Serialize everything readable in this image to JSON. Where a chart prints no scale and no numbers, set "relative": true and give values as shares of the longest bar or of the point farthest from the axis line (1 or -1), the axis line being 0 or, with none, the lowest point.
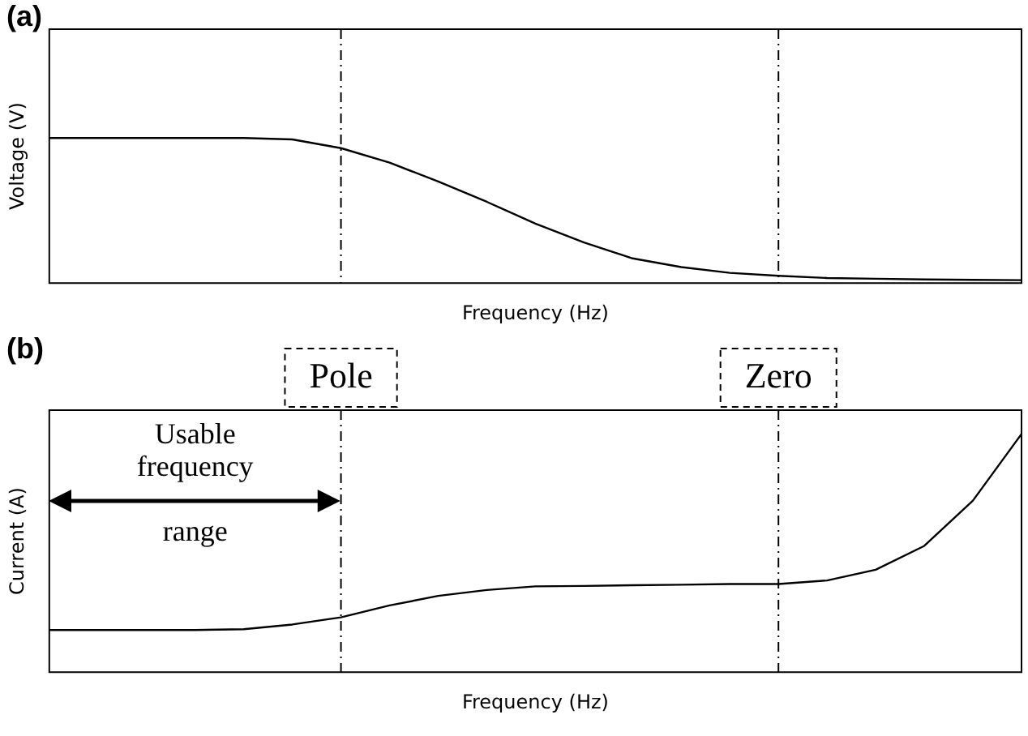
{
  "chart_data": [
    {
      "type": "line",
      "title": "(a)",
      "xlabel": "Frequency (Hz)",
      "ylabel": "Voltage (V)",
      "relative": true,
      "legend": false,
      "marker": "none",
      "line_style": "solid",
      "categories": [
        null,
        null,
        null,
        null,
        null,
        null,
        null,
        null,
        null,
        null,
        null,
        null,
        null,
        null,
        null,
        null,
        null,
        null,
        null,
        null,
        null
      ],
      "series": [
        {
          "color": "#000000",
          "values": [
            1,
            1,
            1,
            1,
            1,
            0.99,
            0.93,
            0.83,
            0.7,
            0.56,
            0.41,
            0.28,
            0.17,
            0.11,
            0.07,
            0.05,
            0.035,
            0.03,
            0.025,
            0.022,
            0.02
          ]
        }
      ]
    },
    {
      "type": "line",
      "title": "(b)",
      "xlabel": "Frequency (Hz)",
      "ylabel": "Current (A)",
      "relative": true,
      "legend": false,
      "marker": "none",
      "line_style": "solid",
      "categories": [
        null,
        null,
        null,
        null,
        null,
        null,
        null,
        null,
        null,
        null,
        null,
        null,
        null,
        null,
        null,
        null,
        null,
        null,
        null,
        null,
        null
      ],
      "series": [
        {
          "color": "#000000",
          "values": [
            0.177,
            0.177,
            0.177,
            0.177,
            0.18,
            0.2,
            0.23,
            0.28,
            0.32,
            0.345,
            0.36,
            0.362,
            0.365,
            0.367,
            0.37,
            0.37,
            0.385,
            0.43,
            0.53,
            0.72,
            1
          ]
        }
      ],
      "annotations": [
        "Usable frequency range",
        "Pole",
        "Zero"
      ]
    }
  ]
}
